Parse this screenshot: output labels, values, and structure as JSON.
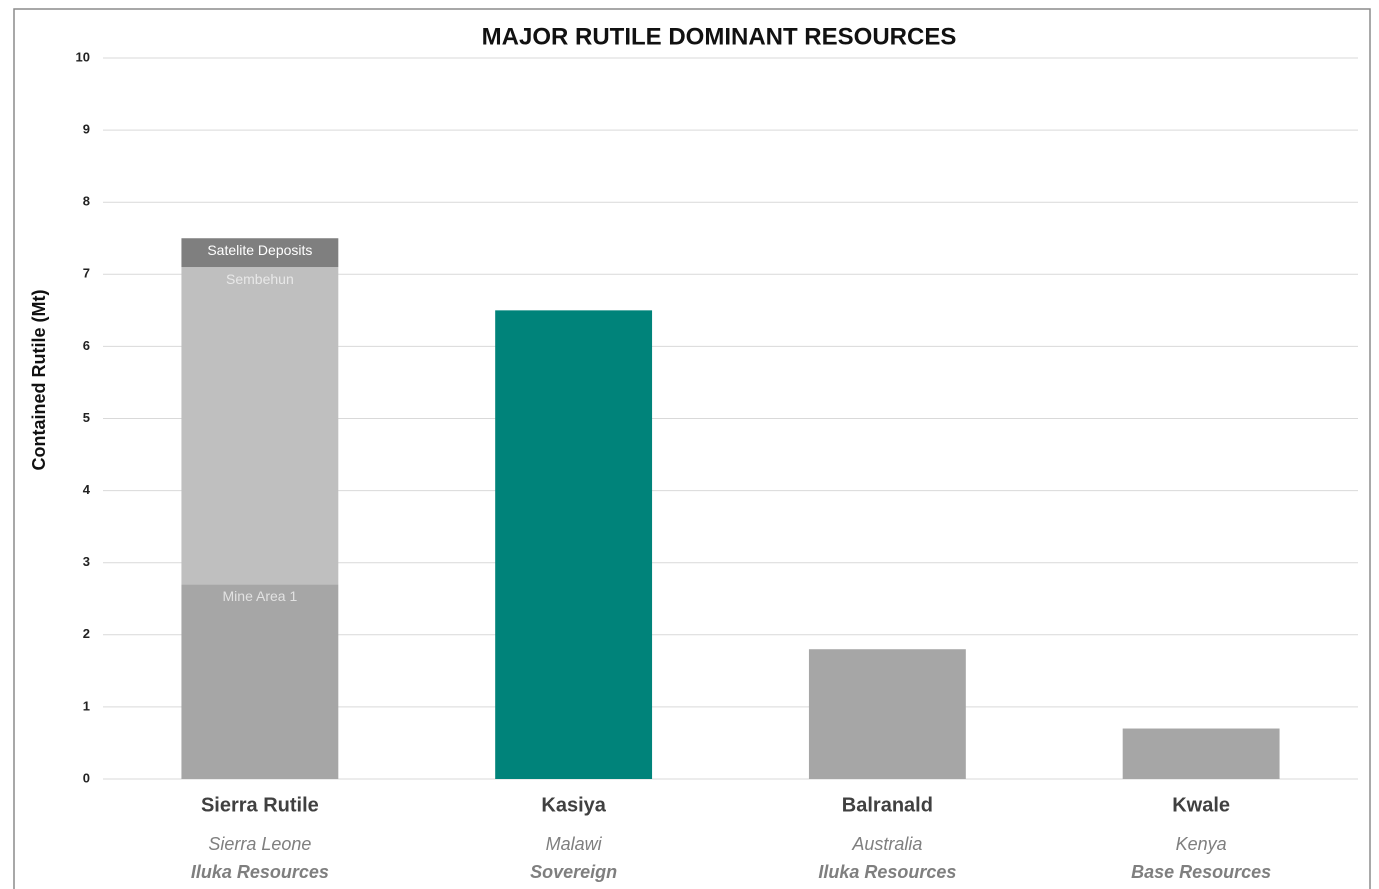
{
  "chart_data": {
    "type": "bar",
    "stacked": true,
    "title": "MAJOR RUTILE DOMINANT RESOURCES",
    "y_label": "Contained Rutile (Mt)",
    "categories": [
      "Sierra Rutile",
      "Kasiya",
      "Balranald",
      "Kwale"
    ],
    "countries": [
      "Sierra Leone",
      "Malawi",
      "Australia",
      "Kenya"
    ],
    "companies": [
      "Iluka Resources",
      "Sovereign",
      "Iluka Resources",
      "Base Resources"
    ],
    "series": [
      {
        "name": "Mine Area 1",
        "color": "#a6a6a6",
        "label_color": "#e2e2e2",
        "values": [
          2.7,
          null,
          null,
          null
        ]
      },
      {
        "name": "Sembehun",
        "color": "#bfbfbf",
        "label_color": "#e8e8e8",
        "values": [
          4.4,
          null,
          null,
          null
        ]
      },
      {
        "name": "Satelite Deposits",
        "color": "#7f7f7f",
        "label_color": "#ffffff",
        "values": [
          0.4,
          null,
          null,
          null
        ]
      },
      {
        "colors": [
          "#a6a6a6",
          "#00837a",
          "#a6a6a6",
          "#a6a6a6"
        ],
        "values": [
          null,
          6.5,
          1.8,
          0.7
        ]
      }
    ],
    "ylim": [
      0,
      10
    ],
    "yticks": [
      0,
      1,
      2,
      3,
      4,
      5,
      6,
      7,
      8,
      9,
      10
    ],
    "grid": true
  }
}
